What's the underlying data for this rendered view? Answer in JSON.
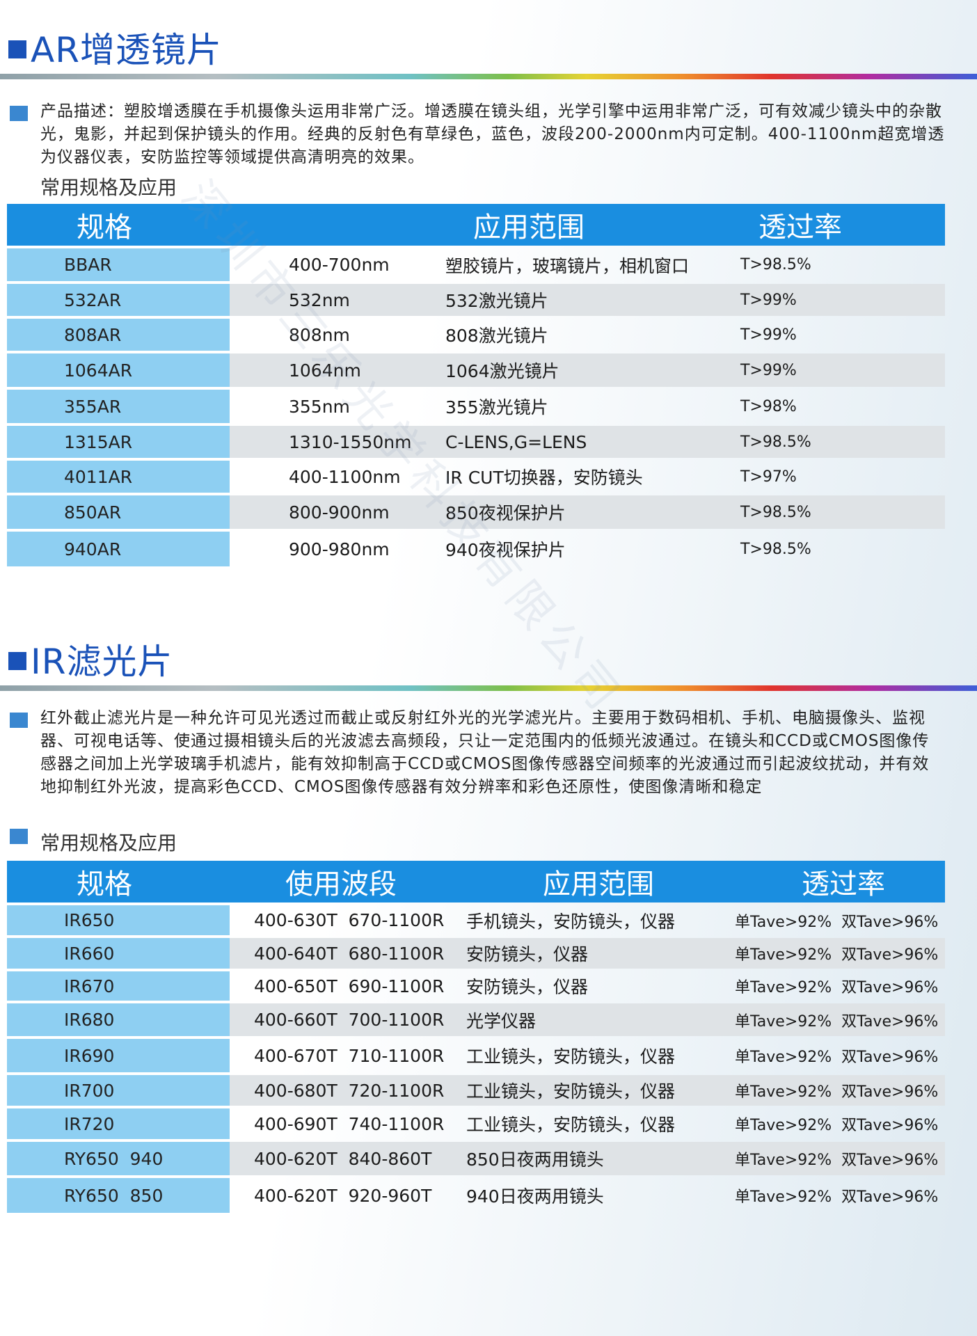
{
  "watermark": "深圳市三乐光学科技有限公司",
  "ar": {
    "title": "AR增透镜片",
    "description": "产品描述：塑胶增透膜在手机摄像头运用非常广泛。增透膜在镜头组，光学引擎中运用非常广泛，可有效减少镜头中的杂散光，鬼影，并起到保护镜头的作用。经典的反射色有草绿色，蓝色，波段200-2000nm内可定制。400-1100nm超宽增透为仪器仪表，安防监控等领域提供高清明亮的效果。",
    "subheading": "常用规格及应用",
    "headers": [
      "规格",
      "",
      "应用范围",
      "透过率"
    ],
    "rows": [
      [
        "BBAR",
        "400-700nm",
        "塑胶镜片，玻璃镜片，相机窗口",
        "T>98.5%"
      ],
      [
        "532AR",
        "532nm",
        "532激光镜片",
        "T>99%"
      ],
      [
        "808AR",
        "808nm",
        "808激光镜片",
        "T>99%"
      ],
      [
        "1064AR",
        "1064nm",
        "1064激光镜片",
        "T>99%"
      ],
      [
        "355AR",
        "355nm",
        "355激光镜片",
        "T>98%"
      ],
      [
        "1315AR",
        "1310-1550nm",
        "C-LENS,G=LENS",
        "T>98.5%"
      ],
      [
        "4011AR",
        "400-1100nm",
        "IR CUT切换器，安防镜头",
        "T>97%"
      ],
      [
        "850AR",
        "800-900nm",
        "850夜视保护片",
        "T>98.5%"
      ],
      [
        "940AR",
        "900-980nm",
        "940夜视保护片",
        "T>98.5%"
      ]
    ]
  },
  "ir": {
    "title": "IR滤光片",
    "description": "红外截止滤光片是一种允许可见光透过而截止或反射红外光的光学滤光片。主要用于数码相机、手机、电脑摄像头、监视器、可视电话等、使通过摄相镜头后的光波滤去高频段，只让一定范围内的低频光波通过。在镜头和CCD或CMOS图像传感器之间加上光学玻璃手机滤片，能有效抑制高于CCD或CMOS图像传感器空间频率的光波通过而引起波纹扰动，并有效地抑制红外光波，提高彩色CCD、CMOS图像传感器有效分辨率和彩色还原性，使图像清晰和稳定",
    "subheading": "常用规格及应用",
    "headers": [
      "规格",
      "使用波段",
      "应用范围",
      "透过率"
    ],
    "rows": [
      [
        "IR650",
        "400-630T  670-1100R",
        "手机镜头，安防镜头，仪器",
        "单Tave>92%  双Tave>96%"
      ],
      [
        "IR660",
        "400-640T  680-1100R",
        "安防镜头，仪器",
        "单Tave>92%  双Tave>96%"
      ],
      [
        "IR670",
        "400-650T  690-1100R",
        "安防镜头，仪器",
        "单Tave>92%  双Tave>96%"
      ],
      [
        "IR680",
        "400-660T  700-1100R",
        "光学仪器",
        "单Tave>92%  双Tave>96%"
      ],
      [
        "IR690",
        "400-670T  710-1100R",
        "工业镜头，安防镜头，仪器",
        "单Tave>92%  双Tave>96%"
      ],
      [
        "IR700",
        "400-680T  720-1100R",
        "工业镜头，安防镜头，仪器",
        "单Tave>92%  双Tave>96%"
      ],
      [
        "IR720",
        "400-690T  740-1100R",
        "工业镜头，安防镜头，仪器",
        "单Tave>92%  双Tave>96%"
      ],
      [
        "RY650  940",
        "400-620T  840-860T",
        "850日夜两用镜头",
        "单Tave>92%  双Tave>96%"
      ],
      [
        "RY650  850",
        "400-620T  920-960T",
        "940日夜两用镜头",
        "单Tave>92%  双Tave>96%"
      ]
    ]
  }
}
